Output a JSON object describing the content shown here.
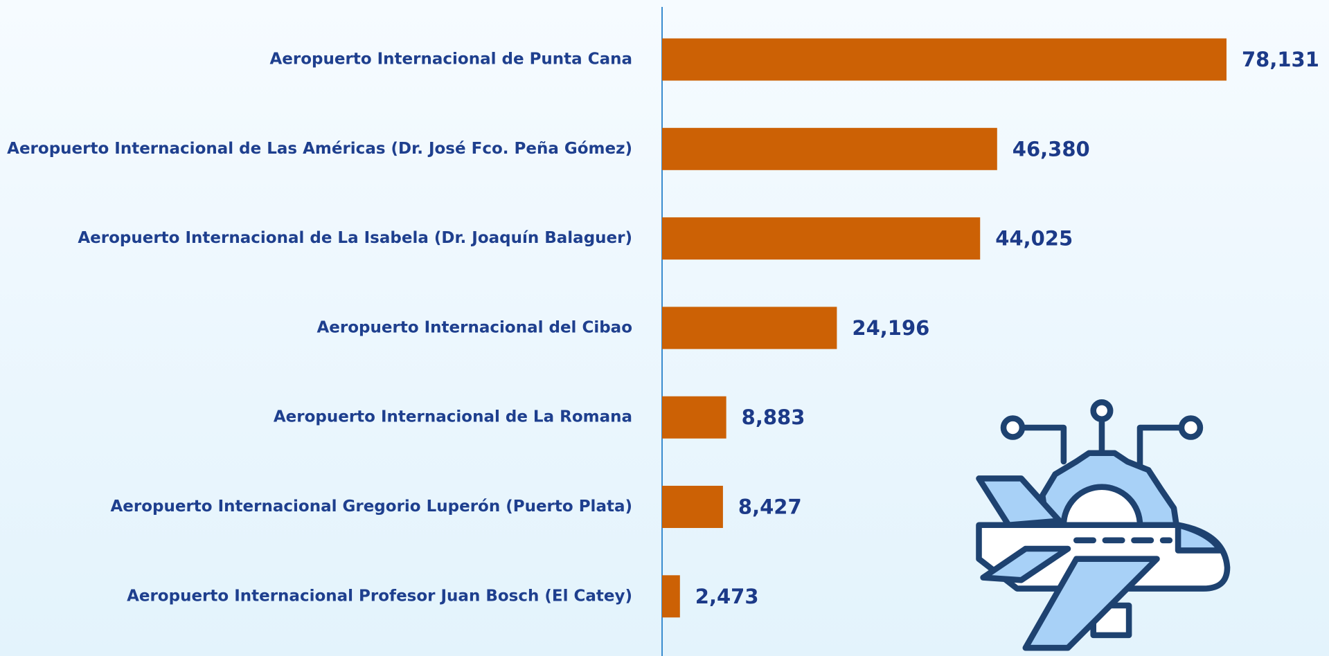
{
  "chart_data": {
    "type": "bar",
    "orientation": "horizontal",
    "categories": [
      "Aeropuerto Internacional de Punta Cana",
      "Aeropuerto Internacional de Las Américas (Dr. José Fco. Peña Gómez)",
      "Aeropuerto Internacional de La Isabela (Dr. Joaquín Balaguer)",
      "Aeropuerto Internacional del Cibao",
      "Aeropuerto Internacional de La Romana",
      "Aeropuerto Internacional Gregorio Luperón (Puerto Plata)",
      "Aeropuerto Internacional Profesor Juan Bosch (El Catey)"
    ],
    "values": [
      78131,
      46380,
      44025,
      24196,
      8883,
      8427,
      2473
    ],
    "value_labels": [
      "78,131",
      "46,380",
      "44,025",
      "24,196",
      "8,883",
      "8,427",
      "2,473"
    ],
    "color": "#cc6105"
  }
}
